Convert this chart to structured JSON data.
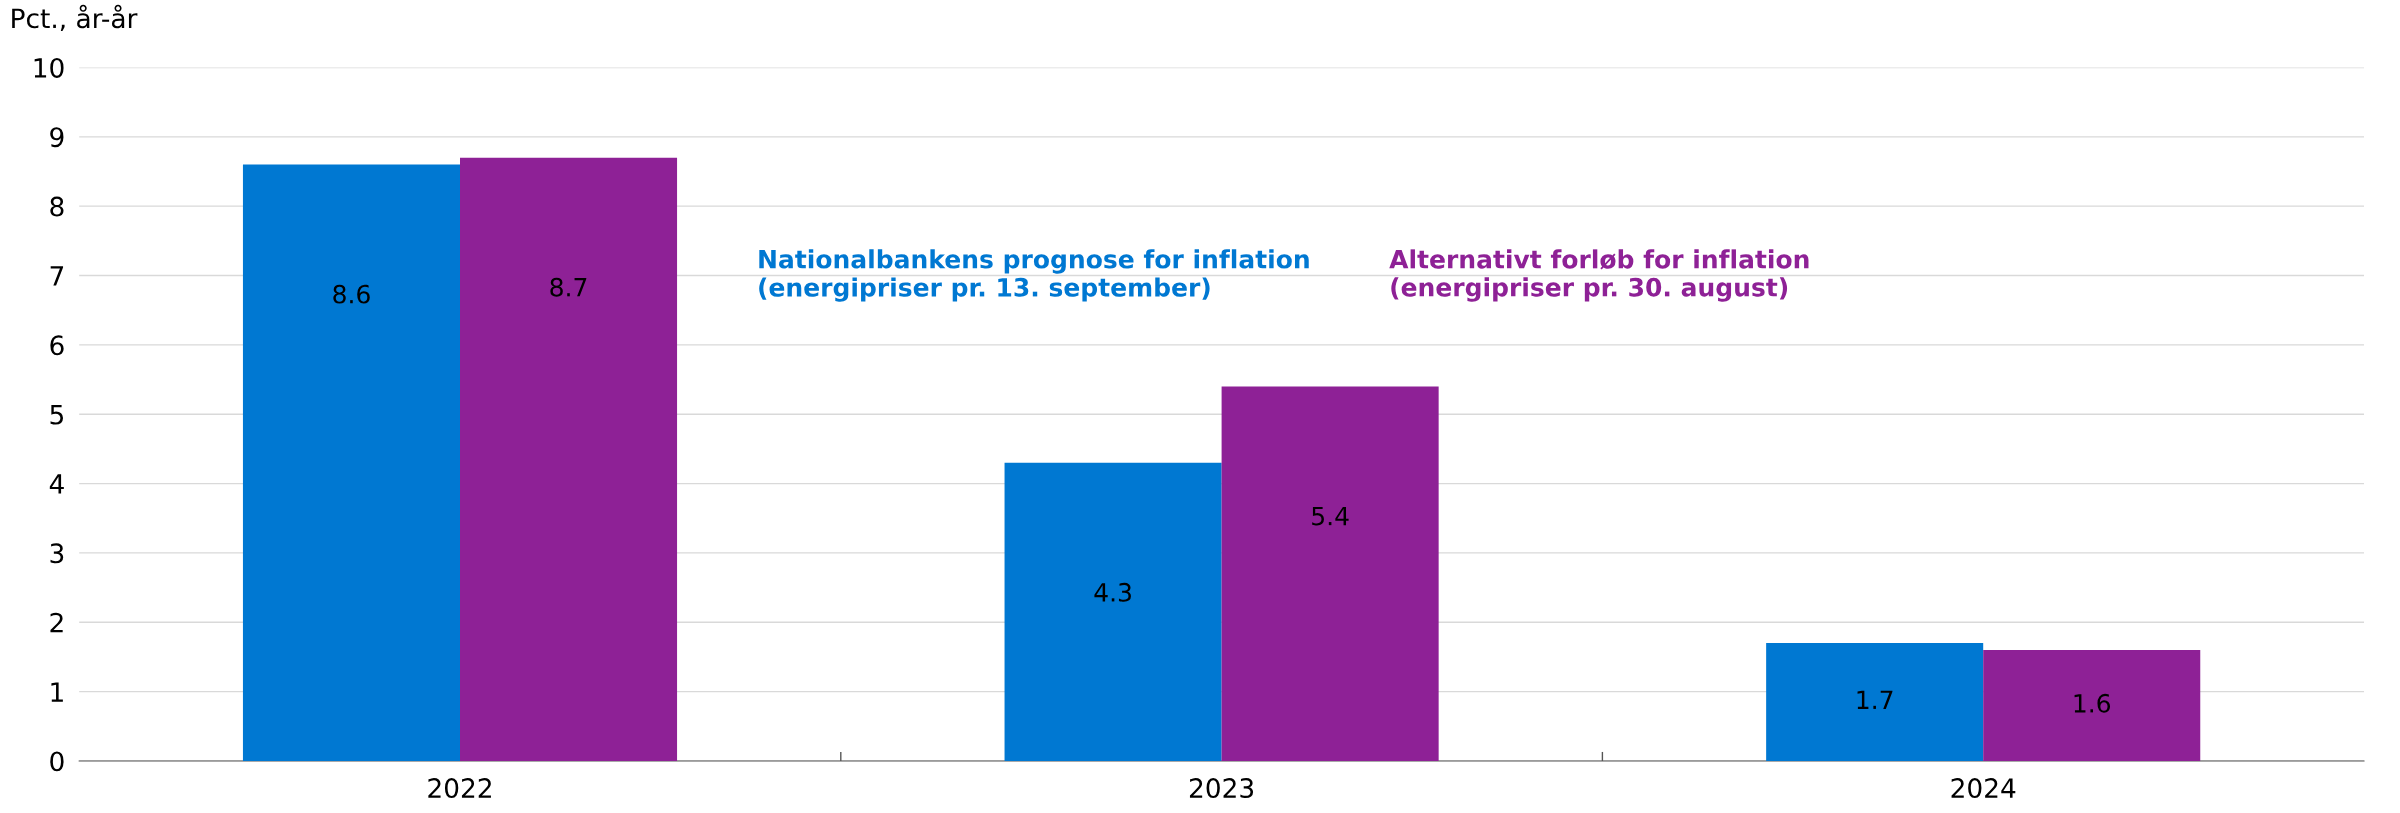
{
  "chart_data": {
    "type": "bar",
    "ylabel": "Pct., år-år",
    "categories": [
      "2022",
      "2023",
      "2024"
    ],
    "series": [
      {
        "name": "Nationalbankens prognose for inflation\n(energipriser pr. 13. september)",
        "color": "#0078d2",
        "values": [
          8.6,
          4.3,
          1.7
        ]
      },
      {
        "name": "Alternativt forløb for inflation\n(energipriser pr. 30. august)",
        "color": "#8e2196",
        "values": [
          8.7,
          5.4,
          1.6
        ]
      }
    ],
    "ylim": [
      0,
      10
    ],
    "yticks": [
      0,
      1,
      2,
      3,
      4,
      5,
      6,
      7,
      8,
      9,
      10
    ],
    "grid": "y",
    "data_labels": true
  }
}
